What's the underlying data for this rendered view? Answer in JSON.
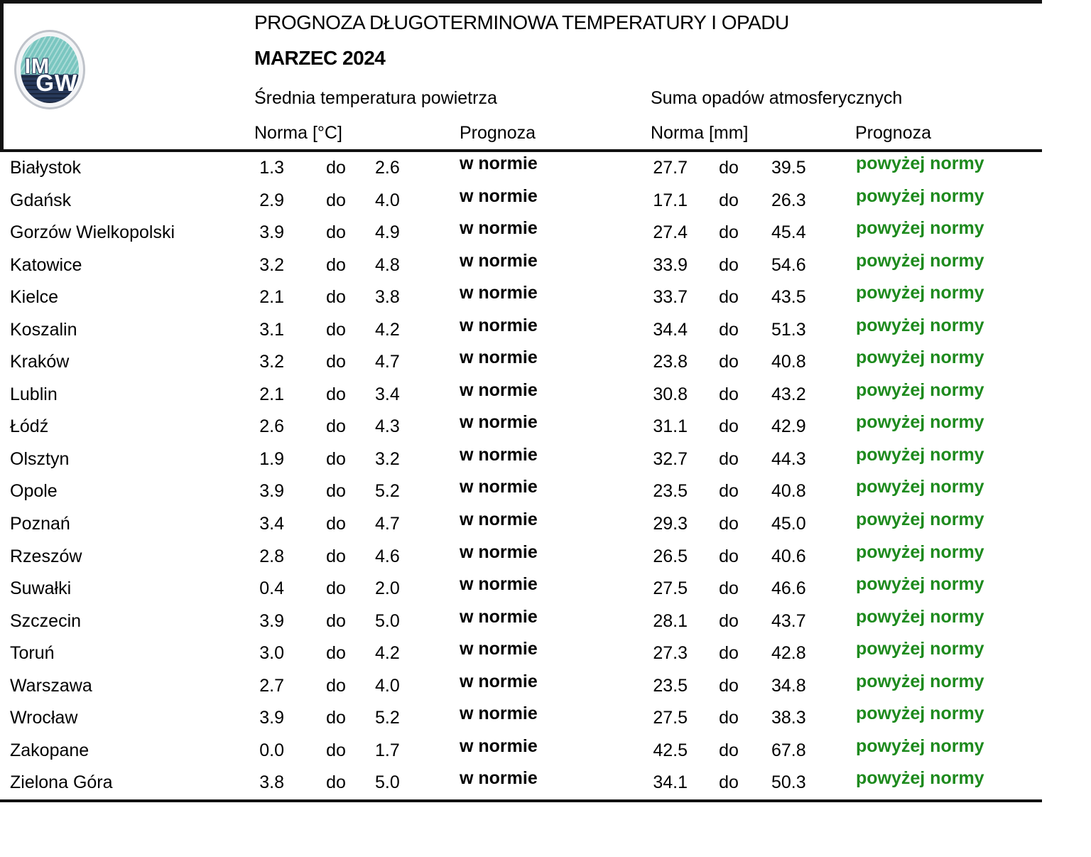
{
  "header": {
    "title": "PROGNOZA DŁUGOTERMINOWA TEMPERATURY I OPADU",
    "subtitle": "MARZEC 2024",
    "temp_section": "Średnia temperatura powietrza",
    "precip_section": "Suma opadów atmosferycznych",
    "temp_norm_label": "Norma [°C]",
    "temp_forecast_label": "Prognoza",
    "precip_norm_label": "Norma [mm]",
    "precip_forecast_label": "Prognoza",
    "range_word": "do"
  },
  "logo": {
    "line1": "IM",
    "line2": "GW",
    "teal": "#7ac6c0",
    "navy": "#27395a",
    "ring": "#bfc3ca"
  },
  "colors": {
    "forecast_in_norm_text": "#000000",
    "forecast_above_norm_text": "#1d8a1d",
    "rule": "#111111"
  },
  "rows": [
    {
      "city": "Białystok",
      "t_low": "1.3",
      "t_high": "2.6",
      "t_forecast": "w normie",
      "p_low": "27.7",
      "p_high": "39.5",
      "p_forecast": "powyżej normy"
    },
    {
      "city": "Gdańsk",
      "t_low": "2.9",
      "t_high": "4.0",
      "t_forecast": "w normie",
      "p_low": "17.1",
      "p_high": "26.3",
      "p_forecast": "powyżej normy"
    },
    {
      "city": "Gorzów Wielkopolski",
      "t_low": "3.9",
      "t_high": "4.9",
      "t_forecast": "w normie",
      "p_low": "27.4",
      "p_high": "45.4",
      "p_forecast": "powyżej normy"
    },
    {
      "city": "Katowice",
      "t_low": "3.2",
      "t_high": "4.8",
      "t_forecast": "w normie",
      "p_low": "33.9",
      "p_high": "54.6",
      "p_forecast": "powyżej normy"
    },
    {
      "city": "Kielce",
      "t_low": "2.1",
      "t_high": "3.8",
      "t_forecast": "w normie",
      "p_low": "33.7",
      "p_high": "43.5",
      "p_forecast": "powyżej normy"
    },
    {
      "city": "Koszalin",
      "t_low": "3.1",
      "t_high": "4.2",
      "t_forecast": "w normie",
      "p_low": "34.4",
      "p_high": "51.3",
      "p_forecast": "powyżej normy"
    },
    {
      "city": "Kraków",
      "t_low": "3.2",
      "t_high": "4.7",
      "t_forecast": "w normie",
      "p_low": "23.8",
      "p_high": "40.8",
      "p_forecast": "powyżej normy"
    },
    {
      "city": "Lublin",
      "t_low": "2.1",
      "t_high": "3.4",
      "t_forecast": "w normie",
      "p_low": "30.8",
      "p_high": "43.2",
      "p_forecast": "powyżej normy"
    },
    {
      "city": "Łódź",
      "t_low": "2.6",
      "t_high": "4.3",
      "t_forecast": "w normie",
      "p_low": "31.1",
      "p_high": "42.9",
      "p_forecast": "powyżej normy"
    },
    {
      "city": "Olsztyn",
      "t_low": "1.9",
      "t_high": "3.2",
      "t_forecast": "w normie",
      "p_low": "32.7",
      "p_high": "44.3",
      "p_forecast": "powyżej normy"
    },
    {
      "city": "Opole",
      "t_low": "3.9",
      "t_high": "5.2",
      "t_forecast": "w normie",
      "p_low": "23.5",
      "p_high": "40.8",
      "p_forecast": "powyżej normy"
    },
    {
      "city": "Poznań",
      "t_low": "3.4",
      "t_high": "4.7",
      "t_forecast": "w normie",
      "p_low": "29.3",
      "p_high": "45.0",
      "p_forecast": "powyżej normy"
    },
    {
      "city": "Rzeszów",
      "t_low": "2.8",
      "t_high": "4.6",
      "t_forecast": "w normie",
      "p_low": "26.5",
      "p_high": "40.6",
      "p_forecast": "powyżej normy"
    },
    {
      "city": "Suwałki",
      "t_low": "0.4",
      "t_high": "2.0",
      "t_forecast": "w normie",
      "p_low": "27.5",
      "p_high": "46.6",
      "p_forecast": "powyżej normy"
    },
    {
      "city": "Szczecin",
      "t_low": "3.9",
      "t_high": "5.0",
      "t_forecast": "w normie",
      "p_low": "28.1",
      "p_high": "43.7",
      "p_forecast": "powyżej normy"
    },
    {
      "city": "Toruń",
      "t_low": "3.0",
      "t_high": "4.2",
      "t_forecast": "w normie",
      "p_low": "27.3",
      "p_high": "42.8",
      "p_forecast": "powyżej normy"
    },
    {
      "city": "Warszawa",
      "t_low": "2.7",
      "t_high": "4.0",
      "t_forecast": "w normie",
      "p_low": "23.5",
      "p_high": "34.8",
      "p_forecast": "powyżej normy"
    },
    {
      "city": "Wrocław",
      "t_low": "3.9",
      "t_high": "5.2",
      "t_forecast": "w normie",
      "p_low": "27.5",
      "p_high": "38.3",
      "p_forecast": "powyżej normy"
    },
    {
      "city": "Zakopane",
      "t_low": "0.0",
      "t_high": "1.7",
      "t_forecast": "w normie",
      "p_low": "42.5",
      "p_high": "67.8",
      "p_forecast": "powyżej normy"
    },
    {
      "city": "Zielona Góra",
      "t_low": "3.8",
      "t_high": "5.0",
      "t_forecast": "w normie",
      "p_low": "34.1",
      "p_high": "50.3",
      "p_forecast": "powyżej normy"
    }
  ]
}
